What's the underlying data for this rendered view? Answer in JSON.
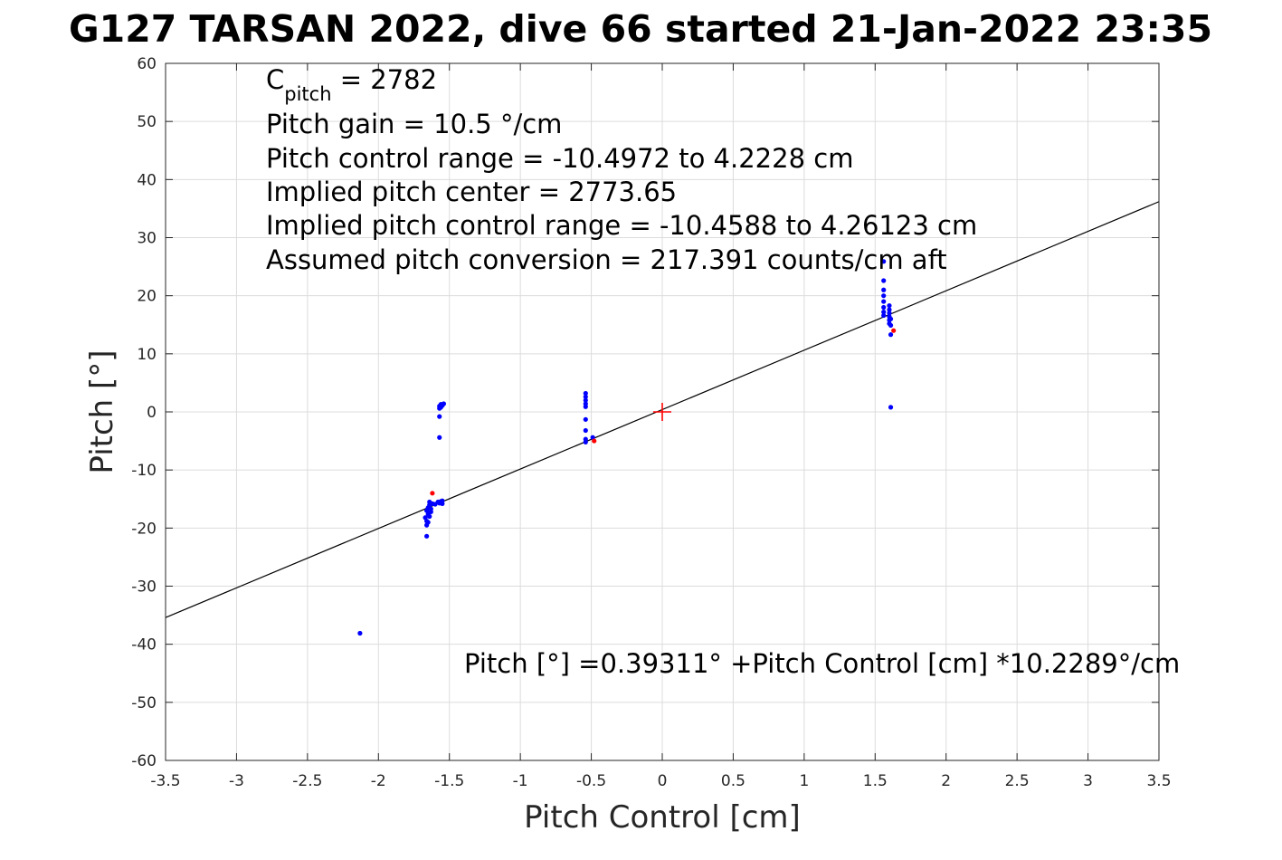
{
  "chart_data": {
    "type": "scatter",
    "title": "G127 TARSAN 2022, dive 66 started 21-Jan-2022 23:35",
    "xlabel": "Pitch Control [cm]",
    "ylabel": "Pitch [°]",
    "xlim": [
      -3.5,
      3.5
    ],
    "ylim": [
      -60,
      60
    ],
    "xticks": [
      -3.5,
      -3,
      -2.5,
      -2,
      -1.5,
      -1,
      -0.5,
      0,
      0.5,
      1,
      1.5,
      2,
      2.5,
      3,
      3.5
    ],
    "xtick_labels": [
      "-3.5",
      "-3",
      "-2.5",
      "-2",
      "-1.5",
      "-1",
      "-0.5",
      "0",
      "0.5",
      "1",
      "1.5",
      "2",
      "2.5",
      "3",
      "3.5"
    ],
    "yticks": [
      60,
      50,
      40,
      30,
      20,
      10,
      0,
      -10,
      -20,
      -30,
      -40,
      -50,
      -60
    ],
    "ytick_labels": [
      "60",
      "50",
      "40",
      "30",
      "20",
      "10",
      "0",
      "-10",
      "-20",
      "-30",
      "-40",
      "-50",
      "-60"
    ],
    "grid": true,
    "annotations": {
      "cpitch_main": "C",
      "cpitch_sub": "pitch",
      "cpitch_rest": " = 2782",
      "gain": "Pitch gain = 10.5 °/cm",
      "range": "Pitch control range = -10.4972 to 4.2228 cm",
      "center": "Implied pitch center = 2773.65",
      "implied_range": "Implied pitch control range = -10.4588 to 4.26123 cm",
      "conversion": "Assumed pitch conversion = 217.391 counts/cm aft",
      "fit": "Pitch [°] =0.39311° +Pitch Control [cm] *10.2289°/cm"
    },
    "fit_line": {
      "intercept": 0.39311,
      "slope": 10.2289,
      "color": "#000000"
    },
    "center_marker": {
      "x": 0,
      "y": 0,
      "color": "#ff0000"
    },
    "series": [
      {
        "color": "#0000ff",
        "points": [
          [
            -2.13,
            -38.1
          ],
          [
            -1.66,
            -21.4
          ],
          [
            -1.66,
            -19.5
          ],
          [
            -1.66,
            -18.8
          ],
          [
            -1.67,
            -18.2
          ],
          [
            -1.65,
            -17.6
          ],
          [
            -1.66,
            -17.0
          ],
          [
            -1.65,
            -16.5
          ],
          [
            -1.64,
            -16.0
          ],
          [
            -1.64,
            -15.5
          ],
          [
            -1.63,
            -17.2
          ],
          [
            -1.63,
            -16.7
          ],
          [
            -1.64,
            -18.0
          ],
          [
            -1.65,
            -19.0
          ],
          [
            -1.62,
            -15.8
          ],
          [
            -1.6,
            -15.9
          ],
          [
            -1.58,
            -15.5
          ],
          [
            -1.57,
            -15.7
          ],
          [
            -1.56,
            -15.4
          ],
          [
            -1.55,
            -15.8
          ],
          [
            -1.55,
            -15.3
          ],
          [
            -1.57,
            0.6
          ],
          [
            -1.57,
            1.0
          ],
          [
            -1.56,
            1.3
          ],
          [
            -1.56,
            0.8
          ],
          [
            -1.55,
            1.1
          ],
          [
            -1.54,
            1.4
          ],
          [
            -1.57,
            -0.8
          ],
          [
            -1.57,
            -4.4
          ],
          [
            -0.54,
            3.2
          ],
          [
            -0.54,
            2.6
          ],
          [
            -0.54,
            2.0
          ],
          [
            -0.54,
            1.4
          ],
          [
            -0.54,
            0.9
          ],
          [
            -0.54,
            -1.3
          ],
          [
            -0.54,
            -3.2
          ],
          [
            -0.54,
            -4.7
          ],
          [
            -0.54,
            -5.2
          ],
          [
            -0.49,
            -4.4
          ],
          [
            1.56,
            25.9
          ],
          [
            1.56,
            22.6
          ],
          [
            1.56,
            21.0
          ],
          [
            1.56,
            20.0
          ],
          [
            1.56,
            19.0
          ],
          [
            1.56,
            18.0
          ],
          [
            1.56,
            17.2
          ],
          [
            1.56,
            16.6
          ],
          [
            1.6,
            18.3
          ],
          [
            1.6,
            17.6
          ],
          [
            1.6,
            17.0
          ],
          [
            1.6,
            16.4
          ],
          [
            1.6,
            15.8
          ],
          [
            1.6,
            15.2
          ],
          [
            1.61,
            16.0
          ],
          [
            1.61,
            14.9
          ],
          [
            1.61,
            13.3
          ],
          [
            1.61,
            0.8
          ]
        ]
      },
      {
        "color": "#ff0000",
        "points": [
          [
            -1.62,
            -14.0
          ],
          [
            -0.48,
            -5.0
          ],
          [
            1.63,
            14.0
          ]
        ]
      }
    ]
  }
}
